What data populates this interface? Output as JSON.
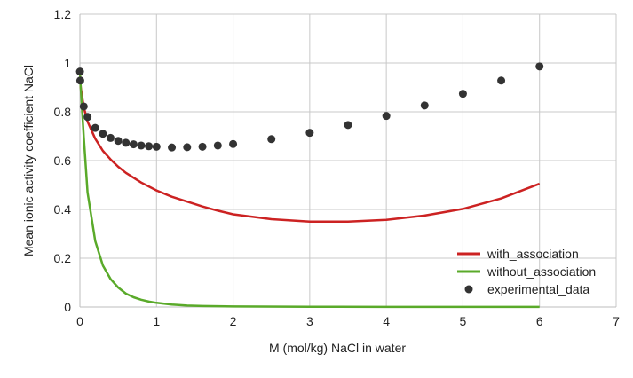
{
  "chart_data": {
    "type": "line",
    "title": "",
    "xlabel": "M (mol/kg) NaCl in water",
    "ylabel": "Mean ionic activity coefficient NaCl",
    "xlim": [
      0,
      7
    ],
    "ylim": [
      0,
      1.2
    ],
    "x_ticks": [
      "0",
      "1",
      "2",
      "3",
      "4",
      "5",
      "6",
      "7"
    ],
    "y_ticks": [
      "0",
      "0.2",
      "0.4",
      "0.6",
      "0.8",
      "1",
      "1.2"
    ],
    "grid": true,
    "legend_position": "bottom-right",
    "series": [
      {
        "name": "with_association",
        "kind": "line",
        "color": "#cc2222",
        "x": [
          0.001,
          0.01,
          0.05,
          0.1,
          0.2,
          0.3,
          0.4,
          0.5,
          0.6,
          0.8,
          1.0,
          1.2,
          1.4,
          1.6,
          1.8,
          2.0,
          2.5,
          3.0,
          3.5,
          4.0,
          4.5,
          5.0,
          5.5,
          6.0
        ],
        "y": [
          0.96,
          0.9,
          0.82,
          0.76,
          0.69,
          0.64,
          0.605,
          0.575,
          0.55,
          0.51,
          0.478,
          0.452,
          0.432,
          0.412,
          0.395,
          0.38,
          0.36,
          0.35,
          0.35,
          0.357,
          0.375,
          0.402,
          0.445,
          0.505
        ]
      },
      {
        "name": "without_association",
        "kind": "line",
        "color": "#5aaa2a",
        "x": [
          0.001,
          0.01,
          0.05,
          0.1,
          0.2,
          0.3,
          0.4,
          0.5,
          0.6,
          0.7,
          0.8,
          0.9,
          1.0,
          1.2,
          1.4,
          1.6,
          2.0,
          3.0,
          4.0,
          5.0,
          6.0
        ],
        "y": [
          0.96,
          0.9,
          0.7,
          0.47,
          0.27,
          0.17,
          0.115,
          0.08,
          0.055,
          0.04,
          0.03,
          0.022,
          0.017,
          0.01,
          0.006,
          0.004,
          0.002,
          0.001,
          0.0005,
          0.0003,
          0.0002
        ]
      },
      {
        "name": "experimental_data",
        "kind": "scatter",
        "color": "#333333",
        "x": [
          0.001,
          0.005,
          0.05,
          0.1,
          0.2,
          0.3,
          0.4,
          0.5,
          0.6,
          0.7,
          0.8,
          0.9,
          1.0,
          1.2,
          1.4,
          1.6,
          1.8,
          2.0,
          2.5,
          3.0,
          3.5,
          4.0,
          4.5,
          5.0,
          5.5,
          6.0
        ],
        "y": [
          0.965,
          0.928,
          0.822,
          0.779,
          0.734,
          0.71,
          0.693,
          0.681,
          0.673,
          0.667,
          0.662,
          0.659,
          0.657,
          0.654,
          0.655,
          0.657,
          0.662,
          0.668,
          0.688,
          0.714,
          0.746,
          0.783,
          0.826,
          0.874,
          0.928,
          0.986
        ]
      }
    ]
  }
}
